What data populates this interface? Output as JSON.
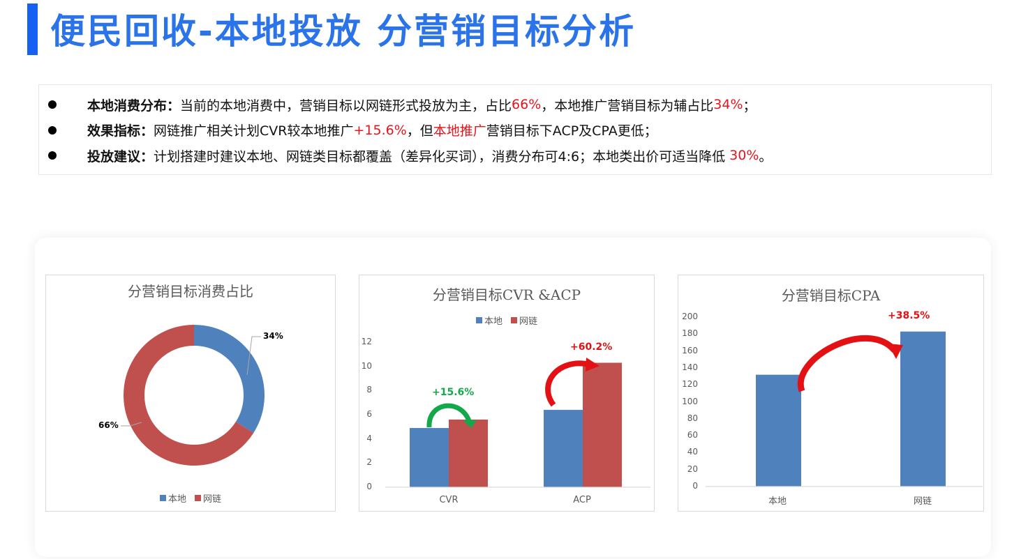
{
  "header": {
    "title": "便民回收-本地投放 分营销目标分析",
    "accent_color": "#1660f3",
    "title_color": "#2a73e8"
  },
  "summary": {
    "items": [
      {
        "label": "本地消费分布：",
        "parts": [
          {
            "text": "当前的本地消费中，营销目标以网链形式投放为主，占比",
            "red": false
          },
          {
            "text": "66%",
            "red": true
          },
          {
            "text": "，本地推广营销目标为辅占比",
            "red": false
          },
          {
            "text": "34%",
            "red": true
          },
          {
            "text": "；",
            "red": false
          }
        ]
      },
      {
        "label": "效果指标：",
        "parts": [
          {
            "text": "网链推广相关计划CVR较本地推广",
            "red": false
          },
          {
            "text": "+15.6%",
            "red": true
          },
          {
            "text": "，但",
            "red": false
          },
          {
            "text": "本地推广",
            "red": true
          },
          {
            "text": "营销目标下ACP及CPA更低；",
            "red": false
          }
        ]
      },
      {
        "label": "投放建议：",
        "parts": [
          {
            "text": "计划搭建时建议本地、网链类目标都覆盖（差异化买词），消费分布可4:6；本地类出价可适当降低 ",
            "red": false
          },
          {
            "text": "30%",
            "red": true
          },
          {
            "text": "。",
            "red": false
          }
        ]
      }
    ],
    "highlight_color": "#e8141b"
  },
  "colors": {
    "local": "#4f81bd",
    "chain": "#c0504d",
    "up_green": "#13a84a",
    "up_red": "#e31014"
  },
  "legend": {
    "local": "本地",
    "chain": "网链"
  },
  "chart_data": [
    {
      "type": "pie",
      "variant": "donut",
      "title": "分营销目标消费占比",
      "categories": [
        "本地",
        "网链"
      ],
      "values": [
        34,
        66
      ],
      "labels": [
        "34%",
        "66%"
      ],
      "legend_position": "bottom"
    },
    {
      "type": "bar",
      "title": "分营销目标CVR &ACP",
      "categories": [
        "CVR",
        "ACP"
      ],
      "series": [
        {
          "name": "本地",
          "values": [
            4.9,
            6.4
          ]
        },
        {
          "name": "网链",
          "values": [
            5.6,
            10.3
          ]
        }
      ],
      "yticks": [
        "0",
        "2",
        "4",
        "6",
        "8",
        "10",
        "12"
      ],
      "ylim": [
        0,
        12
      ],
      "annotations": [
        {
          "category": "CVR",
          "text": "+15.6%",
          "color": "green"
        },
        {
          "category": "ACP",
          "text": "+60.2%",
          "color": "red"
        }
      ],
      "legend_position": "top",
      "grid": false
    },
    {
      "type": "bar",
      "title": "分营销目标CPA",
      "categories": [
        "本地",
        "网链"
      ],
      "values": [
        132,
        183
      ],
      "yticks": [
        "0",
        "20",
        "40",
        "60",
        "80",
        "100",
        "120",
        "140",
        "160",
        "180",
        "200"
      ],
      "ylim": [
        0,
        200
      ],
      "annotations": [
        {
          "text": "+38.5%",
          "color": "red"
        }
      ],
      "grid": false
    }
  ]
}
